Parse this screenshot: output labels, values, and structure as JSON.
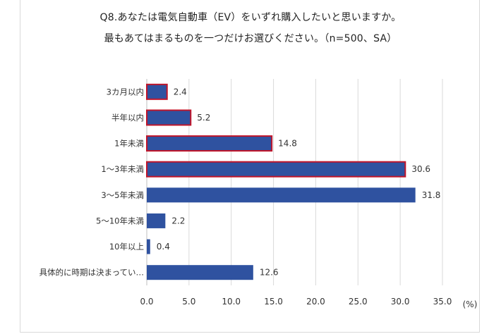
{
  "chart_data": {
    "type": "bar",
    "orientation": "horizontal",
    "title": "Q8.あなたは電気自動車（EV）をいずれ購入したいと思いますか。",
    "subtitle": "最もあてはまるものを一つだけお選びください。（n=500、SA）",
    "unit_label": "(%)",
    "categories": [
      "3カ月以内",
      "半年以内",
      "1年未満",
      "1～3年未満",
      "3～5年未満",
      "5～10年未満",
      "10年以上",
      "具体的に時期は決まってい…"
    ],
    "values": [
      2.4,
      5.2,
      14.8,
      30.6,
      31.8,
      2.2,
      0.4,
      12.6
    ],
    "value_labels": [
      "2.4",
      "5.2",
      "14.8",
      "30.6",
      "31.8",
      "2.2",
      "0.4",
      "12.6"
    ],
    "highlighted": [
      true,
      true,
      true,
      true,
      false,
      false,
      false,
      false
    ],
    "xlim": [
      0,
      35
    ],
    "xticks": [
      0,
      5,
      10,
      15,
      20,
      25,
      30,
      35
    ],
    "xtick_labels": [
      "0.0",
      "5.0",
      "10.0",
      "15.0",
      "20.0",
      "25.0",
      "30.0",
      "35.0"
    ],
    "grid": "vertical",
    "colors": {
      "bar": "#2f52a0",
      "highlight_border": "#c0152a",
      "grid": "#d9d9d9",
      "axis": "#bfbfbf",
      "text": "#333333"
    }
  }
}
